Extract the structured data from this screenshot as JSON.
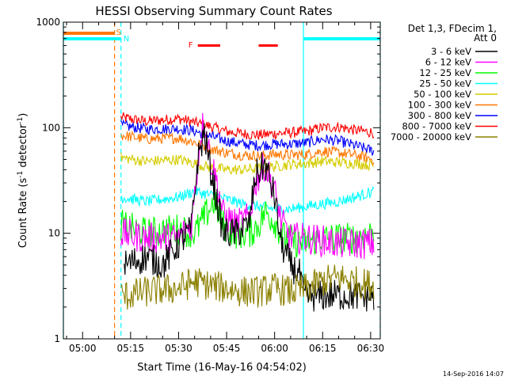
{
  "chart_data": {
    "type": "line",
    "title": "HESSI Observing Summary Count Rates",
    "xlabel": "Start Time (16-May-16 04:54:02)",
    "ylabel_main": "Count Rate (s",
    "ylabel_sup1": "-1",
    "ylabel_mid": " detector",
    "ylabel_sup2": "-1",
    "ylabel_end": ")",
    "y_scale": "log",
    "ylim": [
      1,
      1000
    ],
    "xlim": [
      "04:54",
      "06:33"
    ],
    "xtick_labels": [
      "05:00",
      "05:15",
      "05:30",
      "05:45",
      "06:00",
      "06:15",
      "06:30"
    ],
    "ytick_labels": [
      "1",
      "10",
      "100",
      "1000"
    ],
    "legend": {
      "header1": "Det 1,3, FDecim 1,",
      "header2": "Att 0",
      "entries": [
        {
          "label": "3 - 6 keV",
          "color": "#000000"
        },
        {
          "label": "6 - 12 keV",
          "color": "#ff00ff"
        },
        {
          "label": "12 - 25 keV",
          "color": "#00ff00"
        },
        {
          "label": "25 - 50 keV",
          "color": "#00ffff"
        },
        {
          "label": "50 - 100 keV",
          "color": "#d4cc00"
        },
        {
          "label": "100 - 300 keV",
          "color": "#ff7700"
        },
        {
          "label": "300 - 800 keV",
          "color": "#0000ff"
        },
        {
          "label": "800 - 7000 keV",
          "color": "#ff0000"
        },
        {
          "label": "7000 - 20000 keV",
          "color": "#8b8000"
        }
      ]
    },
    "flags": {
      "saa_label": "S",
      "night_label": "N",
      "flare_label": "F",
      "saa_color": "#ff7700",
      "night_color": "#00ffff",
      "flare_color": "#ff0000",
      "saa_intervals": [
        [
          "04:54",
          "05:10"
        ]
      ],
      "night_intervals": [
        [
          "04:54",
          "05:12"
        ],
        [
          "06:09",
          "06:33"
        ]
      ],
      "flare_intervals": [
        [
          "05:36",
          "05:43"
        ],
        [
          "05:55",
          "06:01"
        ]
      ]
    },
    "vlines": [
      {
        "time": "04:54",
        "color": "#00ffff",
        "style": "solid"
      },
      {
        "time": "05:10",
        "color": "#ff7700",
        "style": "dashed"
      },
      {
        "time": "05:12",
        "color": "#00ffff",
        "style": "dashed"
      },
      {
        "time": "06:09",
        "color": "#00ffff",
        "style": "solid"
      },
      {
        "time": "06:33",
        "color": "#00ffff",
        "style": "dashed"
      }
    ],
    "series": [
      {
        "name": "800 - 7000 keV",
        "color": "#ff0000",
        "points": [
          [
            "05:12",
            125
          ],
          [
            "05:20",
            115
          ],
          [
            "05:30",
            122
          ],
          [
            "05:35",
            112
          ],
          [
            "05:40",
            103
          ],
          [
            "05:45",
            92
          ],
          [
            "05:50",
            88
          ],
          [
            "05:55",
            85
          ],
          [
            "06:00",
            88
          ],
          [
            "06:05",
            90
          ],
          [
            "06:10",
            92
          ],
          [
            "06:15",
            100
          ],
          [
            "06:20",
            102
          ],
          [
            "06:25",
            95
          ],
          [
            "06:31",
            90
          ]
        ]
      },
      {
        "name": "300 - 800 keV",
        "color": "#0000ff",
        "points": [
          [
            "05:12",
            105
          ],
          [
            "05:20",
            97
          ],
          [
            "05:30",
            98
          ],
          [
            "05:35",
            93
          ],
          [
            "05:40",
            83
          ],
          [
            "05:45",
            75
          ],
          [
            "05:50",
            70
          ],
          [
            "05:55",
            68
          ],
          [
            "06:00",
            70
          ],
          [
            "06:05",
            70
          ],
          [
            "06:10",
            72
          ],
          [
            "06:15",
            78
          ],
          [
            "06:20",
            75
          ],
          [
            "06:25",
            68
          ],
          [
            "06:31",
            60
          ]
        ]
      },
      {
        "name": "100 - 300 keV",
        "color": "#ff7700",
        "points": [
          [
            "05:12",
            85
          ],
          [
            "05:20",
            78
          ],
          [
            "05:30",
            80
          ],
          [
            "05:35",
            73
          ],
          [
            "05:40",
            63
          ],
          [
            "05:45",
            58
          ],
          [
            "05:50",
            55
          ],
          [
            "05:55",
            54
          ],
          [
            "06:00",
            56
          ],
          [
            "06:05",
            55
          ],
          [
            "06:10",
            56
          ],
          [
            "06:15",
            60
          ],
          [
            "06:20",
            58
          ],
          [
            "06:25",
            55
          ],
          [
            "06:31",
            50
          ]
        ]
      },
      {
        "name": "50 - 100 keV",
        "color": "#d4cc00",
        "points": [
          [
            "05:12",
            52
          ],
          [
            "05:20",
            48
          ],
          [
            "05:30",
            50
          ],
          [
            "05:35",
            46
          ],
          [
            "05:40",
            42
          ],
          [
            "05:45",
            40
          ],
          [
            "05:50",
            40
          ],
          [
            "05:55",
            41
          ],
          [
            "06:00",
            43
          ],
          [
            "06:05",
            45
          ],
          [
            "06:10",
            46
          ],
          [
            "06:15",
            48
          ],
          [
            "06:20",
            47
          ],
          [
            "06:25",
            46
          ],
          [
            "06:31",
            44
          ]
        ]
      },
      {
        "name": "25 - 50 keV",
        "color": "#00ffff",
        "points": [
          [
            "05:12",
            22
          ],
          [
            "05:20",
            20
          ],
          [
            "05:30",
            22
          ],
          [
            "05:35",
            25
          ],
          [
            "05:40",
            23
          ],
          [
            "05:45",
            21
          ],
          [
            "05:50",
            19
          ],
          [
            "05:55",
            18
          ],
          [
            "06:00",
            17
          ],
          [
            "06:05",
            17
          ],
          [
            "06:10",
            18
          ],
          [
            "06:15",
            19
          ],
          [
            "06:20",
            20
          ],
          [
            "06:25",
            22
          ],
          [
            "06:31",
            25
          ]
        ]
      },
      {
        "name": "12 - 25 keV",
        "color": "#00ff00",
        "points": [
          [
            "05:12",
            12
          ],
          [
            "05:20",
            10
          ],
          [
            "05:30",
            11
          ],
          [
            "05:35",
            10
          ],
          [
            "05:38",
            14
          ],
          [
            "05:41",
            20
          ],
          [
            "05:44",
            12
          ],
          [
            "05:48",
            10
          ],
          [
            "05:52",
            10
          ],
          [
            "05:55",
            12
          ],
          [
            "05:57",
            16
          ],
          [
            "06:00",
            13
          ],
          [
            "06:03",
            9
          ],
          [
            "06:08",
            8
          ],
          [
            "06:15",
            9
          ],
          [
            "06:25",
            9
          ],
          [
            "06:31",
            10
          ]
        ]
      },
      {
        "name": "6 - 12 keV",
        "color": "#ff00ff",
        "points": [
          [
            "05:12",
            10
          ],
          [
            "05:20",
            9
          ],
          [
            "05:30",
            9
          ],
          [
            "05:34",
            12
          ],
          [
            "05:37",
            90
          ],
          [
            "05:38",
            120
          ],
          [
            "05:40",
            50
          ],
          [
            "05:42",
            30
          ],
          [
            "05:44",
            15
          ],
          [
            "05:48",
            12
          ],
          [
            "05:52",
            14
          ],
          [
            "05:54",
            30
          ],
          [
            "05:57",
            45
          ],
          [
            "06:00",
            25
          ],
          [
            "06:02",
            13
          ],
          [
            "06:05",
            9
          ],
          [
            "06:10",
            9
          ],
          [
            "06:20",
            8
          ],
          [
            "06:31",
            8
          ]
        ]
      },
      {
        "name": "3 - 6 keV",
        "color": "#000000",
        "points": [
          [
            "05:13",
            5
          ],
          [
            "05:20",
            6
          ],
          [
            "05:25",
            5
          ],
          [
            "05:30",
            8
          ],
          [
            "05:34",
            11
          ],
          [
            "05:36",
            50
          ],
          [
            "05:38",
            90
          ],
          [
            "05:40",
            40
          ],
          [
            "05:42",
            20
          ],
          [
            "05:44",
            10
          ],
          [
            "05:48",
            10
          ],
          [
            "05:52",
            12
          ],
          [
            "05:54",
            35
          ],
          [
            "05:57",
            45
          ],
          [
            "06:00",
            22
          ],
          [
            "06:02",
            8
          ],
          [
            "06:05",
            5
          ],
          [
            "06:08",
            4
          ],
          [
            "06:09",
            2.5
          ],
          [
            "06:20",
            2.6
          ],
          [
            "06:31",
            2.5
          ]
        ]
      },
      {
        "name": "7000 - 20000 keV",
        "color": "#8b8000",
        "points": [
          [
            "05:12",
            2.5
          ],
          [
            "05:20",
            2.8
          ],
          [
            "05:30",
            3
          ],
          [
            "05:35",
            3.5
          ],
          [
            "05:40",
            3.2
          ],
          [
            "05:45",
            3
          ],
          [
            "05:50",
            2.8
          ],
          [
            "05:55",
            2.8
          ],
          [
            "06:00",
            3
          ],
          [
            "06:05",
            2.8
          ],
          [
            "06:10",
            3
          ],
          [
            "06:15",
            3.5
          ],
          [
            "06:20",
            3.8
          ],
          [
            "06:25",
            3.5
          ],
          [
            "06:31",
            3.2
          ]
        ]
      }
    ]
  },
  "footer": {
    "timestamp": "14-Sep-2016 14:07"
  }
}
